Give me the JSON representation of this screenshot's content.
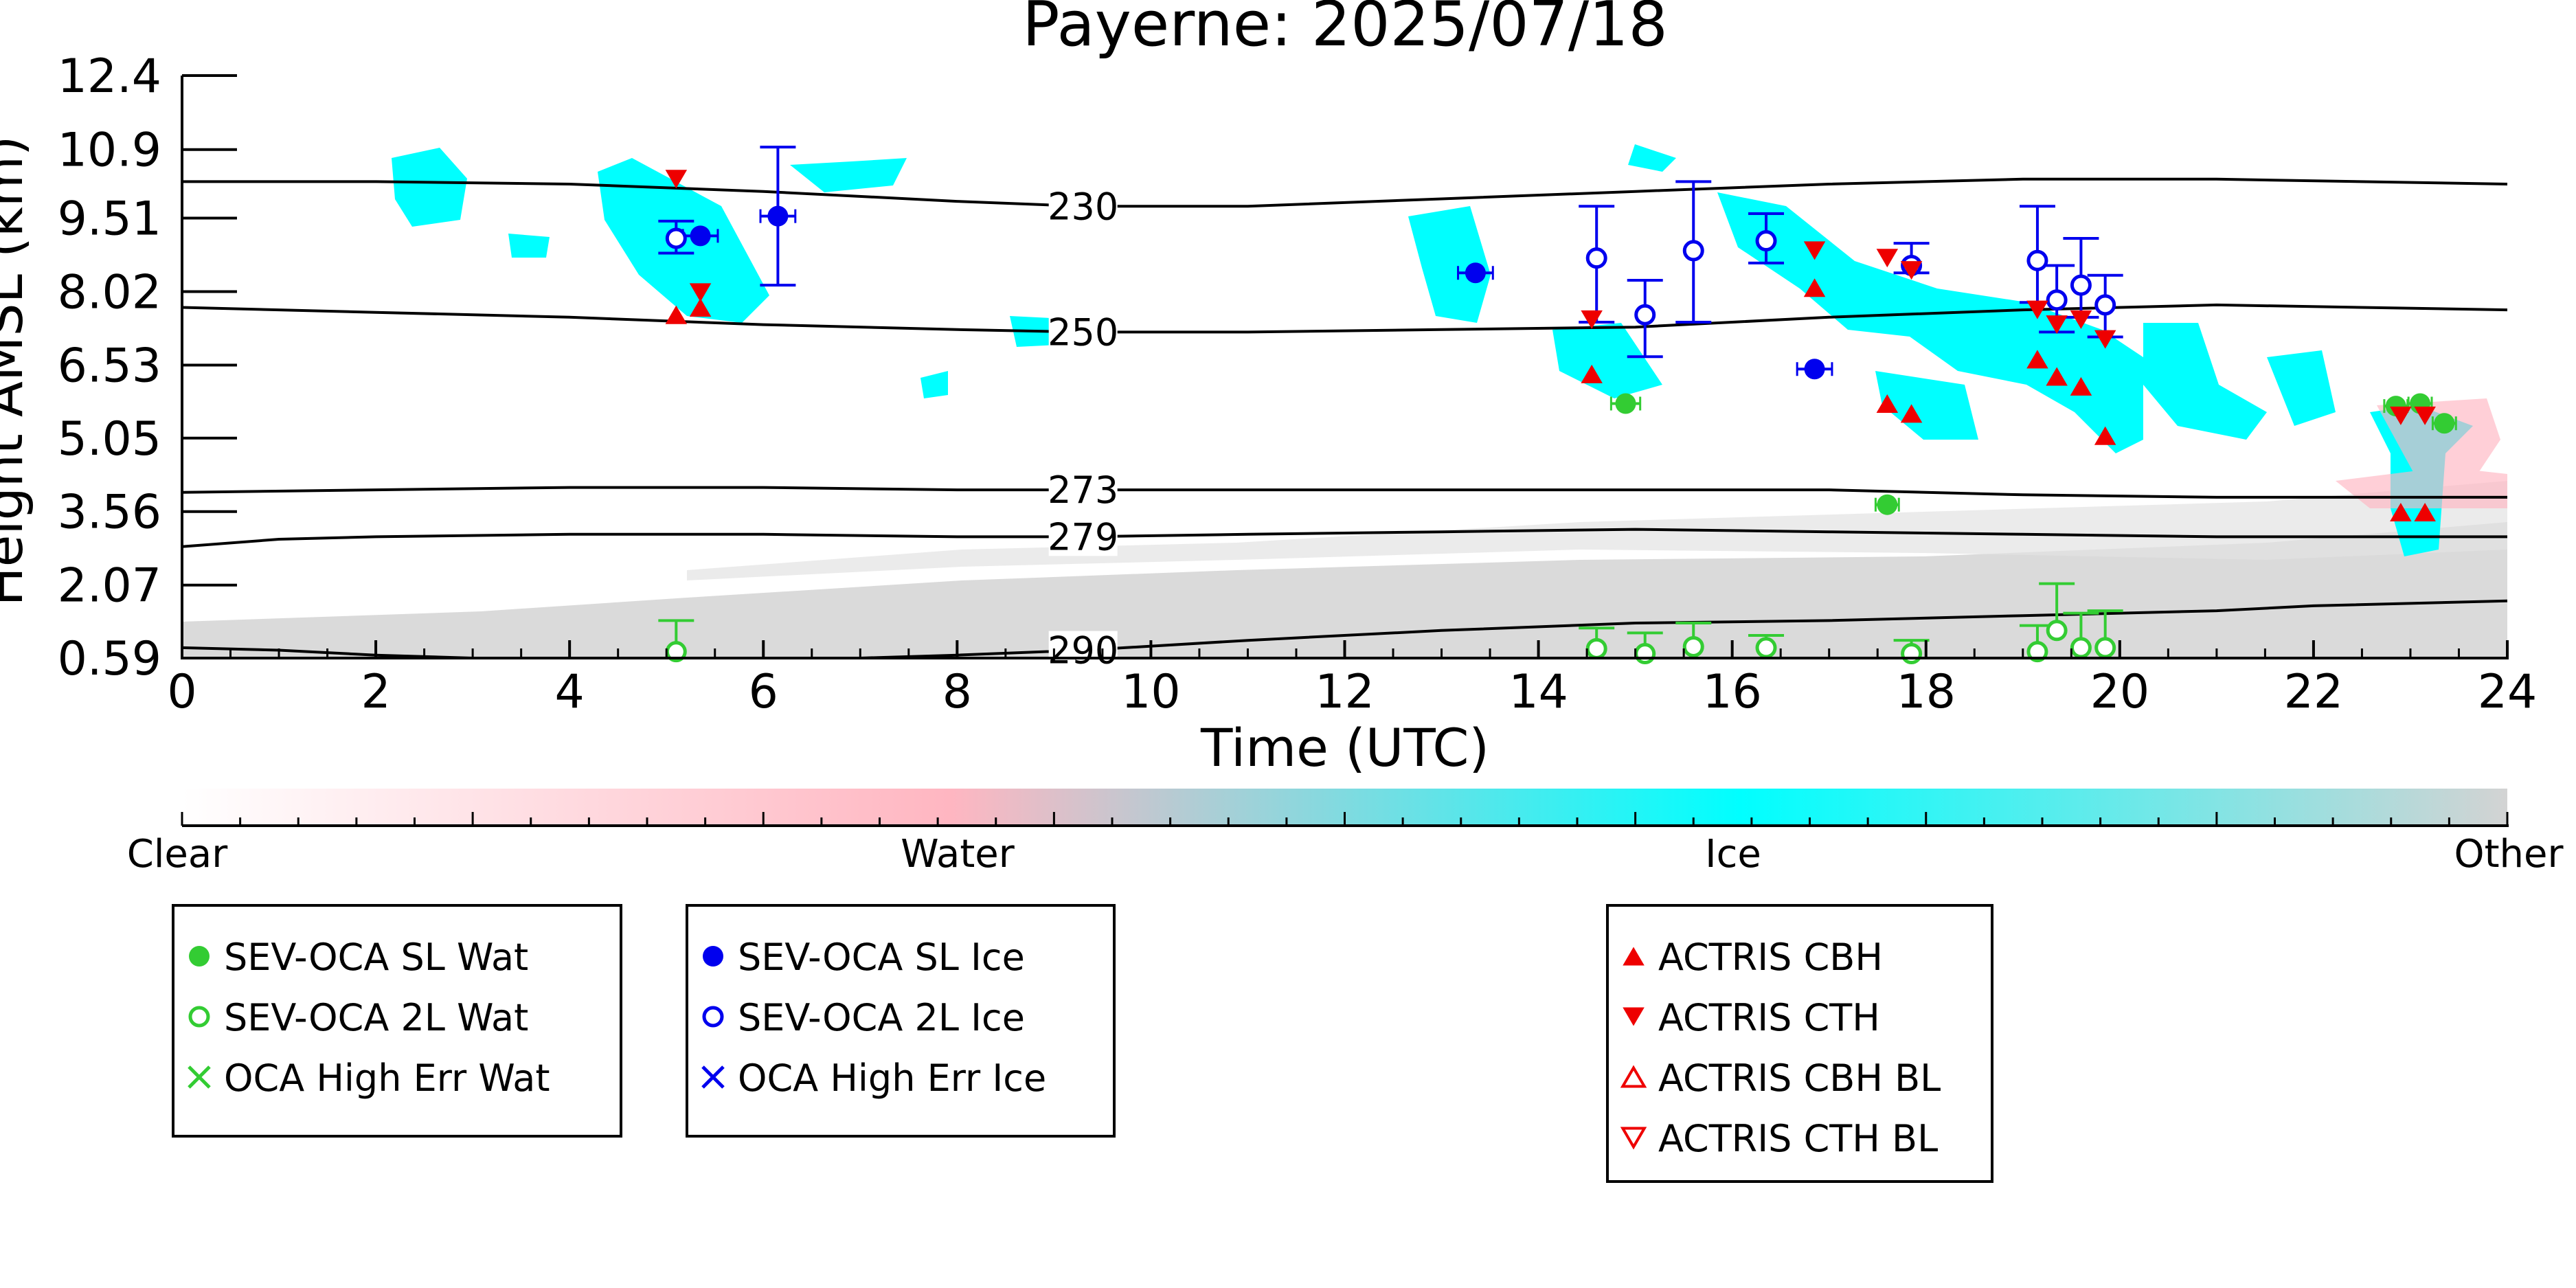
{
  "chart_data": {
    "type": "scatter",
    "title": "Payerne: 2025/07/18",
    "xlabel": "Time (UTC)",
    "ylabel": "Height AMSL (km)",
    "xlim": [
      0,
      24
    ],
    "ylim": [
      0.59,
      12.4
    ],
    "x_ticks": [
      "0",
      "2",
      "4",
      "6",
      "8",
      "10",
      "12",
      "14",
      "16",
      "18",
      "20",
      "22",
      "24"
    ],
    "y_ticks": [
      "0.59",
      "2.07",
      "3.56",
      "5.05",
      "6.53",
      "8.02",
      "9.51",
      "10.9",
      "12.4"
    ],
    "grid": false,
    "colors": {
      "water": "#ffb6c1",
      "ice": "#00ffff",
      "other": "#d3d3d3",
      "sl_wat": "#33cc33",
      "sl_ice": "#0000ee",
      "actris": "#ee0000",
      "contour": "#000000"
    },
    "colorbar": {
      "labels": [
        "Clear",
        "Water",
        "Ice",
        "Other"
      ],
      "colors": [
        "#ffffff",
        "#ffb6c1",
        "#00ffff",
        "#d3d3d3"
      ]
    },
    "isotherms": [
      {
        "label": "230",
        "label_x": 9.3,
        "x": [
          0,
          2,
          4,
          6,
          8,
          9.3,
          11,
          13,
          15,
          17,
          19,
          21,
          24
        ],
        "y": [
          10.25,
          10.25,
          10.2,
          10.05,
          9.85,
          9.75,
          9.75,
          9.9,
          10.05,
          10.2,
          10.3,
          10.3,
          10.2
        ]
      },
      {
        "label": "250",
        "label_x": 9.3,
        "x": [
          0,
          2,
          4,
          6,
          8,
          9.3,
          11,
          13,
          15,
          17,
          19,
          21,
          24
        ],
        "y": [
          7.7,
          7.6,
          7.5,
          7.35,
          7.25,
          7.2,
          7.2,
          7.25,
          7.3,
          7.5,
          7.65,
          7.75,
          7.65
        ]
      },
      {
        "label": "273",
        "label_x": 9.3,
        "x": [
          0,
          2,
          4,
          6,
          8,
          9.3,
          11,
          13,
          15,
          17,
          19,
          21,
          24
        ],
        "y": [
          3.95,
          4.0,
          4.05,
          4.05,
          4.0,
          4.0,
          4.0,
          4.0,
          4.0,
          4.0,
          3.9,
          3.85,
          3.85
        ]
      },
      {
        "label": "279",
        "label_x": 9.3,
        "x": [
          0,
          1,
          2,
          4,
          6,
          8,
          9.3,
          11,
          13,
          15,
          17,
          19,
          21,
          24
        ],
        "y": [
          2.85,
          3.0,
          3.05,
          3.1,
          3.1,
          3.05,
          3.05,
          3.1,
          3.15,
          3.2,
          3.15,
          3.1,
          3.05,
          3.05
        ]
      },
      {
        "label": "290",
        "label_x": 9.3,
        "x": [
          0,
          1,
          2,
          3,
          4,
          5,
          6,
          7,
          8,
          9.3,
          11,
          13,
          15,
          17,
          19,
          21,
          22,
          24
        ],
        "y": [
          0.8,
          0.75,
          0.65,
          0.59,
          0.59,
          0.59,
          0.59,
          0.59,
          0.65,
          0.75,
          0.95,
          1.15,
          1.3,
          1.35,
          1.45,
          1.55,
          1.65,
          1.75
        ]
      }
    ],
    "series": [
      {
        "name": "SEV-OCA SL Wat",
        "marker": "filled-circle",
        "color": "#33cc33",
        "x": [
          14.9,
          17.6,
          22.85,
          23.1,
          23.35
        ],
        "y": [
          5.75,
          3.7,
          5.7,
          5.75,
          5.35
        ],
        "xerr": [
          0.15,
          0.12,
          0.12,
          0.12,
          0.12
        ]
      },
      {
        "name": "SEV-OCA 2L Wat",
        "marker": "open-circle",
        "color": "#33cc33",
        "x": [
          5.1,
          14.6,
          15.1,
          15.6,
          16.35,
          17.85,
          19.15,
          19.35,
          19.6,
          19.85
        ],
        "y": [
          0.72,
          0.78,
          0.68,
          0.82,
          0.8,
          0.68,
          0.72,
          1.15,
          0.8,
          0.8
        ],
        "yerr_hi": [
          1.35,
          1.2,
          1.1,
          1.3,
          1.05,
          0.95,
          1.25,
          2.1,
          1.5,
          1.55
        ]
      },
      {
        "name": "OCA High Err Wat",
        "marker": "x",
        "color": "#33cc33",
        "x": [],
        "y": []
      },
      {
        "name": "SEV-OCA SL Ice",
        "marker": "filled-circle",
        "color": "#0000ee",
        "x": [
          5.35,
          6.15,
          13.35,
          16.85
        ],
        "y": [
          9.15,
          9.55,
          8.4,
          6.45
        ],
        "yerr_lo": [
          9.15,
          8.15,
          8.4,
          6.45
        ],
        "yerr_hi": [
          9.15,
          10.95,
          8.4,
          6.45
        ]
      },
      {
        "name": "SEV-OCA 2L Ice",
        "marker": "open-circle",
        "color": "#0000ee",
        "x": [
          5.1,
          14.6,
          15.1,
          15.6,
          16.35,
          17.85,
          19.15,
          19.35,
          19.6,
          19.85
        ],
        "y": [
          9.1,
          8.7,
          7.55,
          8.85,
          9.05,
          8.55,
          8.65,
          7.85,
          8.15,
          7.75
        ],
        "yerr_lo": [
          8.8,
          7.4,
          6.7,
          7.4,
          8.6,
          8.4,
          7.8,
          7.2,
          7.5,
          7.1
        ],
        "yerr_hi": [
          9.45,
          9.75,
          8.25,
          10.25,
          9.6,
          9.0,
          9.75,
          8.55,
          9.1,
          8.35
        ]
      },
      {
        "name": "OCA High Err Ice",
        "marker": "x",
        "color": "#0000ee",
        "x": [],
        "y": []
      },
      {
        "name": "ACTRIS CBH",
        "marker": "filled-triangle-up",
        "color": "#ee0000",
        "x": [
          5.1,
          5.35,
          14.55,
          16.85,
          17.6,
          17.85,
          19.15,
          19.35,
          19.6,
          19.85,
          22.9,
          23.15
        ],
        "y": [
          7.55,
          7.7,
          6.35,
          8.1,
          5.75,
          5.55,
          6.65,
          6.3,
          6.1,
          5.1,
          3.55,
          3.55
        ]
      },
      {
        "name": "ACTRIS CTH",
        "marker": "filled-triangle-down",
        "color": "#ee0000",
        "x": [
          5.1,
          5.35,
          14.55,
          16.85,
          17.6,
          17.85,
          19.15,
          19.35,
          19.6,
          19.85,
          22.9,
          23.15
        ],
        "y": [
          10.3,
          8.0,
          7.45,
          8.85,
          8.7,
          8.45,
          7.65,
          7.35,
          7.45,
          7.05,
          5.5,
          5.5
        ]
      },
      {
        "name": "ACTRIS CBH BL",
        "marker": "open-triangle-up",
        "color": "#ee0000",
        "x": [],
        "y": []
      },
      {
        "name": "ACTRIS CTH BL",
        "marker": "open-triangle-down",
        "color": "#ee0000",
        "x": [],
        "y": []
      }
    ],
    "legend": {
      "placement": "bottom",
      "groups": [
        [
          "SEV-OCA SL Wat",
          "SEV-OCA 2L Wat",
          "OCA High Err Wat"
        ],
        [
          "SEV-OCA SL Ice",
          "SEV-OCA 2L Ice",
          "OCA High Err Ice"
        ],
        [
          "ACTRIS CBH",
          "ACTRIS CTH",
          "ACTRIS CBH BL",
          "ACTRIS CTH BL"
        ]
      ]
    }
  }
}
